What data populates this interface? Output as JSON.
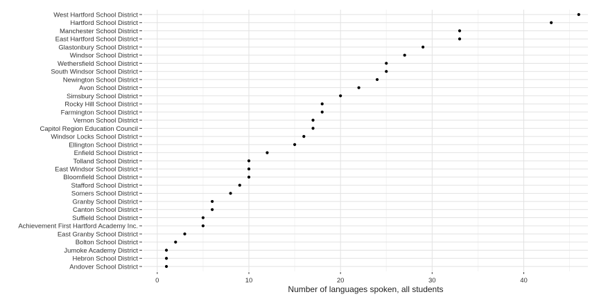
{
  "chart_data": {
    "type": "scatter",
    "title": "",
    "xlabel": "Number of languages spoken, all students",
    "ylabel": "",
    "xlim": [
      -1.5,
      47
    ],
    "x_ticks": [
      0,
      10,
      20,
      30,
      40
    ],
    "grid": true,
    "point_color": "#000000",
    "categories": [
      "West Hartford School District",
      "Hartford School District",
      "Manchester School District",
      "East Hartford School District",
      "Glastonbury School District",
      "Windsor School District",
      "Wethersfield School District",
      "South Windsor School District",
      "Newington School District",
      "Avon School District",
      "Simsbury School District",
      "Rocky Hill School District",
      "Farmington School District",
      "Vernon School District",
      "Capitol Region Education Council",
      "Windsor Locks School District",
      "Ellington School District",
      "Enfield School District",
      "Tolland School District",
      "East Windsor School District",
      "Bloomfield School District",
      "Stafford School District",
      "Somers School District",
      "Granby School District",
      "Canton School District",
      "Suffield School District",
      "Achievement First Hartford Academy Inc.",
      "East Granby School District",
      "Bolton School District",
      "Jumoke Academy District",
      "Hebron School District",
      "Andover School District"
    ],
    "values": [
      46,
      43,
      33,
      33,
      29,
      27,
      25,
      25,
      24,
      22,
      20,
      18,
      18,
      17,
      17,
      16,
      15,
      12,
      10,
      10,
      10,
      9,
      8,
      6,
      6,
      5,
      5,
      3,
      2,
      1,
      1,
      1
    ]
  }
}
